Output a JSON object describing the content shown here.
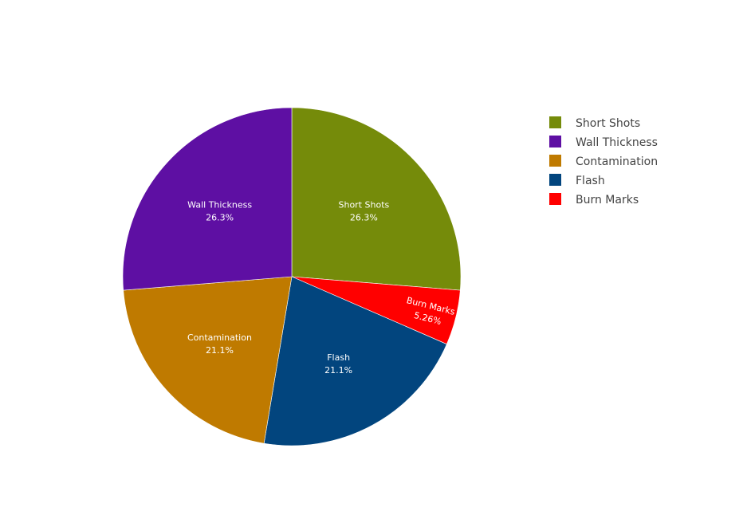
{
  "chart_data": {
    "type": "pie",
    "title": "",
    "categories": [
      "Short Shots",
      "Wall Thickness",
      "Contamination",
      "Flash",
      "Burn Marks"
    ],
    "values": [
      26.3,
      26.3,
      21.1,
      21.1,
      5.26
    ],
    "value_labels": [
      "26.3%",
      "26.3%",
      "21.1%",
      "21.1%",
      "5.26%"
    ],
    "slice_order": [
      "Short Shots",
      "Burn Marks",
      "Flash",
      "Contamination",
      "Wall Thickness"
    ],
    "colors": {
      "Short Shots": "#758b0a",
      "Wall Thickness": "#5e0fa3",
      "Contamination": "#bf7a00",
      "Flash": "#02457e",
      "Burn Marks": "#ff0000"
    },
    "direction": "clockwise",
    "start": "top",
    "legend": {
      "position": "top-right",
      "entries": [
        "Short Shots",
        "Wall Thickness",
        "Contamination",
        "Flash",
        "Burn Marks"
      ]
    }
  }
}
